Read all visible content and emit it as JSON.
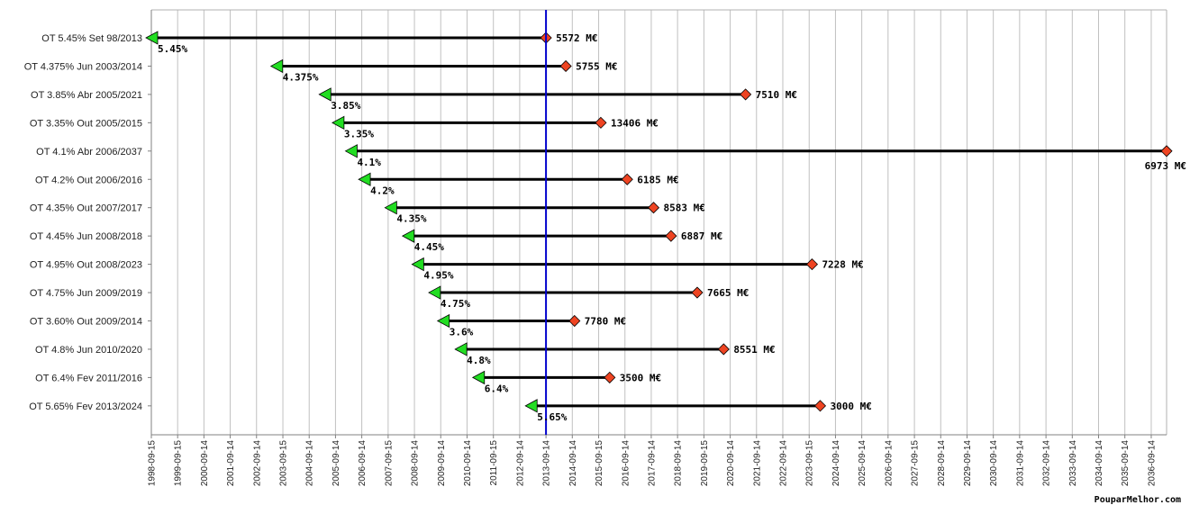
{
  "chart_data": {
    "type": "range-bar",
    "title": "",
    "xlabel": "",
    "ylabel": "",
    "grid": true,
    "reference_line_date": "2013-09-14",
    "colors": {
      "start_marker": "#22dd22",
      "end_marker": "#ee4422",
      "bar": "#000000",
      "reference": "#0000cc",
      "grid": "#c0c0c0"
    },
    "x_ticks": [
      "1998-09-15",
      "1999-09-15",
      "2000-09-14",
      "2001-09-14",
      "2002-09-14",
      "2003-09-15",
      "2004-09-14",
      "2005-09-14",
      "2006-09-14",
      "2007-09-15",
      "2008-09-14",
      "2009-09-14",
      "2010-09-14",
      "2011-09-15",
      "2012-09-14",
      "2013-09-14",
      "2014-09-14",
      "2015-09-15",
      "2016-09-14",
      "2017-09-14",
      "2018-09-14",
      "2019-09-15",
      "2020-09-14",
      "2021-09-14",
      "2022-09-14",
      "2023-09-15",
      "2024-09-14",
      "2025-09-14",
      "2026-09-14",
      "2027-09-15",
      "2028-09-14",
      "2029-09-14",
      "2030-09-14",
      "2031-09-14",
      "2032-09-14",
      "2033-09-14",
      "2034-09-14",
      "2035-09-14",
      "2036-09-14"
    ],
    "bonds": [
      {
        "name": "OT 5.45% Set 98/2013",
        "start": "1998-09-15",
        "end": "2013-09-14",
        "rate": "5.45%",
        "amount": "5572 M€"
      },
      {
        "name": "OT 4.375% Jun 2003/2014",
        "start": "2003-06-16",
        "end": "2014-06-16",
        "rate": "4.375%",
        "amount": "5755 M€"
      },
      {
        "name": "OT 3.85% Abr 2005/2021",
        "start": "2005-04-15",
        "end": "2021-04-15",
        "rate": "3.85%",
        "amount": "7510 M€"
      },
      {
        "name": "OT 3.35% Out 2005/2015",
        "start": "2005-10-15",
        "end": "2015-10-15",
        "rate": "3.35%",
        "amount": "13406 M€"
      },
      {
        "name": "OT 4.1% Abr 2006/2037",
        "start": "2006-04-15",
        "end": "2037-04-15",
        "rate": "4.1%",
        "amount": "6973 M€"
      },
      {
        "name": "OT 4.2% Out 2006/2016",
        "start": "2006-10-15",
        "end": "2016-10-15",
        "rate": "4.2%",
        "amount": "6185 M€"
      },
      {
        "name": "OT 4.35% Out 2007/2017",
        "start": "2007-10-16",
        "end": "2017-10-16",
        "rate": "4.35%",
        "amount": "8583 M€"
      },
      {
        "name": "OT 4.45% Jun 2008/2018",
        "start": "2008-06-15",
        "end": "2018-06-15",
        "rate": "4.45%",
        "amount": "6887 M€"
      },
      {
        "name": "OT 4.95% Out 2008/2023",
        "start": "2008-10-25",
        "end": "2023-10-25",
        "rate": "4.95%",
        "amount": "7228 M€"
      },
      {
        "name": "OT 4.75% Jun 2009/2019",
        "start": "2009-06-14",
        "end": "2019-06-14",
        "rate": "4.75%",
        "amount": "7665 M€"
      },
      {
        "name": "OT 3.60% Out 2009/2014",
        "start": "2009-10-15",
        "end": "2014-10-15",
        "rate": "3.6%",
        "amount": "7780 M€"
      },
      {
        "name": "OT 4.8% Jun 2010/2020",
        "start": "2010-06-15",
        "end": "2020-06-15",
        "rate": "4.8%",
        "amount": "8551 M€"
      },
      {
        "name": "OT 6.4% Fev 2011/2016",
        "start": "2011-02-15",
        "end": "2016-02-15",
        "rate": "6.4%",
        "amount": "3500 M€"
      },
      {
        "name": "OT 5.65% Fev 2013/2024",
        "start": "2013-02-15",
        "end": "2024-02-15",
        "rate": "5.65%",
        "amount": "3000 M€"
      }
    ]
  },
  "watermark": "PouparMelhor.com"
}
